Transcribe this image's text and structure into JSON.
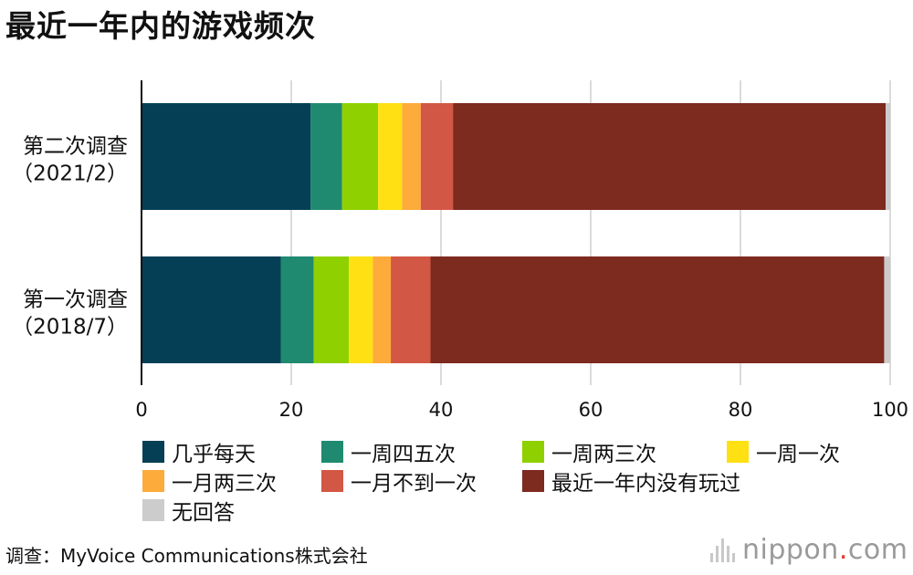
{
  "title": "最近一年内的游戏频次",
  "chart_data": {
    "type": "bar",
    "orientation": "horizontal",
    "stacked": true,
    "categories": [
      "第二次调查\n（2021/2）",
      "第一次调查\n（2018/7）"
    ],
    "series": [
      {
        "name": "几乎每天",
        "color": "#053f56",
        "values": [
          22.6,
          18.6
        ]
      },
      {
        "name": "一周四五次",
        "color": "#1f8a70",
        "values": [
          4.2,
          4.4
        ]
      },
      {
        "name": "一周两三次",
        "color": "#8fd000",
        "values": [
          4.8,
          4.7
        ]
      },
      {
        "name": "一周一次",
        "color": "#ffe012",
        "values": [
          3.2,
          3.2
        ]
      },
      {
        "name": "一月两三次",
        "color": "#fdab3a",
        "values": [
          2.5,
          2.4
        ]
      },
      {
        "name": "一月不到一次",
        "color": "#d25744",
        "values": [
          4.3,
          5.3
        ]
      },
      {
        "name": "最近一年内没有玩过",
        "color": "#7d2a1f",
        "values": [
          57.8,
          60.6
        ]
      },
      {
        "name": "无回答",
        "color": "#cccccc",
        "values": [
          0.6,
          0.8
        ]
      }
    ],
    "xlim": [
      0,
      100
    ],
    "xticks": [
      "0",
      "20",
      "40",
      "60",
      "80",
      "100"
    ],
    "xunit": "(%)",
    "grid": true,
    "legend_position": "bottom"
  },
  "source": "调查：MyVoice Communications株式会社",
  "logo": {
    "name": "nippon",
    "dot": ".",
    "tld": "com"
  }
}
